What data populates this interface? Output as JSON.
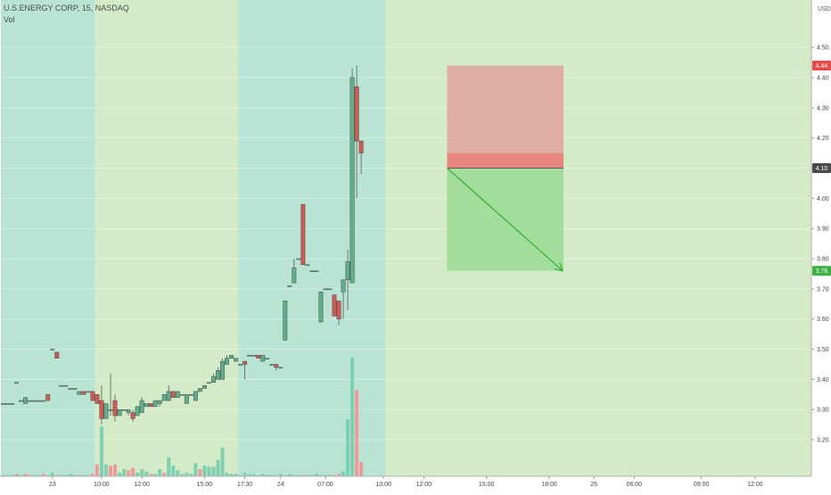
{
  "header": {
    "symbol_line": "U.S.ENERGY CORP, 15, NASDAQ",
    "volume_label": "Vol"
  },
  "colors": {
    "up": "#5fae8e",
    "down": "#d05a56",
    "vol_up": "#7fcfb3",
    "vol_down": "#ef9a9a",
    "session_pre": "#b9e4d4",
    "session_regular": "#d3ebc7",
    "stop_zone": "#e0a79e",
    "stop_band": "#e7877f",
    "target_zone": "#9fdc9a",
    "arrow": "#3ab23a",
    "entry_line": "#5a5a5a",
    "badge_red": "#e84a4a",
    "badge_dark": "#4a4a4a",
    "badge_green": "#3cb043"
  },
  "chart_data": {
    "type": "candlestick",
    "title": "U.S.ENERGY CORP, 15, NASDAQ",
    "currency_label": "USD",
    "y_ticks": [
      "4.50",
      "4.40",
      "4.30",
      "4.20",
      "4.10",
      "4.00",
      "3.90",
      "3.80",
      "3.70",
      "3.60",
      "3.50",
      "3.40",
      "3.30",
      "3.20"
    ],
    "ylim": [
      3.15,
      4.53
    ],
    "x_ticks": [
      "23",
      "10:00",
      "12:00",
      "15:00",
      "17:30",
      "24",
      "07:00",
      "10:00",
      "12:00",
      "15:00",
      "18:00",
      "25",
      "06:00",
      "09:00",
      "12:00"
    ],
    "price_badges": [
      {
        "label": "4.44",
        "value": 4.44,
        "color": "badge_red"
      },
      {
        "label": "4.10",
        "value": 4.1,
        "color": "badge_dark"
      },
      {
        "label": "3.76",
        "value": 3.76,
        "color": "badge_green"
      }
    ],
    "position_tool": {
      "entry": 4.1,
      "stop": 4.44,
      "target": 3.76,
      "stop_band_top": 4.15,
      "bar_start": 99,
      "bar_end": 125
    },
    "sessions": [
      {
        "kind": "pre",
        "bar_start": 0,
        "bar_end": 21
      },
      {
        "kind": "regular",
        "bar_start": 21,
        "bar_end": 53
      },
      {
        "kind": "pre",
        "bar_start": 53,
        "bar_end": 86
      },
      {
        "kind": "regular",
        "bar_start": 86,
        "bar_end": 200
      }
    ],
    "candles": [
      [
        0,
        3.32,
        3.32,
        3.32,
        3.32
      ],
      [
        1,
        3.32,
        3.32,
        3.32,
        3.32
      ],
      [
        2,
        3.32,
        3.32,
        3.32,
        3.32
      ],
      [
        3,
        3.39,
        3.39,
        3.39,
        3.39
      ],
      [
        4,
        3.33,
        3.33,
        3.33,
        3.33
      ],
      [
        5,
        3.32,
        3.34,
        3.32,
        3.34
      ],
      [
        6,
        3.33,
        3.33,
        3.33,
        3.33
      ],
      [
        7,
        3.33,
        3.33,
        3.33,
        3.33
      ],
      [
        8,
        3.33,
        3.33,
        3.33,
        3.33
      ],
      [
        9,
        3.33,
        3.33,
        3.33,
        3.33
      ],
      [
        10,
        3.35,
        3.33,
        3.33,
        3.35
      ],
      [
        11,
        3.5,
        3.5,
        3.5,
        3.5
      ],
      [
        12,
        3.49,
        3.47,
        3.47,
        3.49
      ],
      [
        13,
        3.38,
        3.38,
        3.38,
        3.38
      ],
      [
        14,
        3.38,
        3.38,
        3.38,
        3.38
      ],
      [
        15,
        3.37,
        3.37,
        3.37,
        3.37
      ],
      [
        16,
        3.37,
        3.37,
        3.37,
        3.37
      ],
      [
        17,
        3.35,
        3.36,
        3.35,
        3.36
      ],
      [
        18,
        3.36,
        3.35,
        3.35,
        3.36
      ],
      [
        19,
        3.36,
        3.36,
        3.36,
        3.36
      ],
      [
        20,
        3.36,
        3.33,
        3.33,
        3.36
      ],
      [
        21,
        3.35,
        3.32,
        3.32,
        3.35
      ],
      [
        22,
        3.33,
        3.27,
        3.25,
        3.38
      ],
      [
        23,
        3.27,
        3.32,
        3.27,
        3.32
      ],
      [
        24,
        3.3,
        3.3,
        3.28,
        3.42
      ],
      [
        25,
        3.33,
        3.28,
        3.26,
        3.35
      ],
      [
        26,
        3.28,
        3.3,
        3.28,
        3.3
      ],
      [
        27,
        3.3,
        3.3,
        3.3,
        3.3
      ],
      [
        28,
        3.29,
        3.3,
        3.28,
        3.3
      ],
      [
        29,
        3.29,
        3.27,
        3.26,
        3.3
      ],
      [
        30,
        3.28,
        3.31,
        3.28,
        3.31
      ],
      [
        31,
        3.29,
        3.33,
        3.29,
        3.34
      ],
      [
        32,
        3.31,
        3.32,
        3.31,
        3.32
      ],
      [
        33,
        3.32,
        3.31,
        3.31,
        3.32
      ],
      [
        34,
        3.31,
        3.33,
        3.31,
        3.33
      ],
      [
        35,
        3.32,
        3.33,
        3.31,
        3.33
      ],
      [
        36,
        3.33,
        3.35,
        3.33,
        3.35
      ],
      [
        37,
        3.33,
        3.36,
        3.33,
        3.38
      ],
      [
        38,
        3.36,
        3.34,
        3.34,
        3.36
      ],
      [
        39,
        3.34,
        3.36,
        3.34,
        3.36
      ],
      [
        40,
        3.35,
        3.35,
        3.35,
        3.35
      ],
      [
        41,
        3.32,
        3.35,
        3.32,
        3.35
      ],
      [
        42,
        3.35,
        3.35,
        3.35,
        3.35
      ],
      [
        43,
        3.33,
        3.36,
        3.33,
        3.36
      ],
      [
        44,
        3.36,
        3.37,
        3.36,
        3.37
      ],
      [
        45,
        3.37,
        3.38,
        3.37,
        3.38
      ],
      [
        46,
        3.39,
        3.39,
        3.39,
        3.39
      ],
      [
        47,
        3.39,
        3.41,
        3.39,
        3.42
      ],
      [
        48,
        3.4,
        3.43,
        3.4,
        3.44
      ],
      [
        49,
        3.4,
        3.46,
        3.4,
        3.47
      ],
      [
        50,
        3.45,
        3.47,
        3.45,
        3.48
      ],
      [
        51,
        3.47,
        3.48,
        3.47,
        3.48
      ],
      [
        52,
        3.46,
        3.47,
        3.46,
        3.47
      ],
      [
        53,
        3.45,
        3.45,
        3.45,
        3.45
      ],
      [
        54,
        3.46,
        3.45,
        3.4,
        3.46
      ],
      [
        55,
        3.48,
        3.48,
        3.48,
        3.48
      ],
      [
        56,
        3.48,
        3.48,
        3.48,
        3.48
      ],
      [
        57,
        3.48,
        3.47,
        3.47,
        3.48
      ],
      [
        58,
        3.46,
        3.48,
        3.46,
        3.48
      ],
      [
        59,
        3.47,
        3.47,
        3.47,
        3.47
      ],
      [
        60,
        3.45,
        3.45,
        3.45,
        3.45
      ],
      [
        61,
        3.45,
        3.44,
        3.43,
        3.45
      ],
      [
        62,
        3.44,
        3.44,
        3.44,
        3.44
      ],
      [
        63,
        3.53,
        3.66,
        3.53,
        3.66
      ],
      [
        64,
        3.71,
        3.71,
        3.71,
        3.71
      ],
      [
        65,
        3.72,
        3.77,
        3.72,
        3.8
      ],
      [
        66,
        3.8,
        3.8,
        3.8,
        3.8
      ],
      [
        67,
        3.98,
        3.78,
        3.78,
        3.98
      ],
      [
        68,
        3.78,
        3.78,
        3.78,
        3.78
      ],
      [
        69,
        3.76,
        3.76,
        3.76,
        3.76
      ],
      [
        70,
        3.76,
        3.76,
        3.76,
        3.76
      ],
      [
        71,
        3.59,
        3.69,
        3.59,
        3.69
      ],
      [
        72,
        3.7,
        3.7,
        3.7,
        3.7
      ],
      [
        73,
        3.7,
        3.7,
        3.7,
        3.7
      ],
      [
        74,
        3.68,
        3.61,
        3.61,
        3.68
      ],
      [
        75,
        3.66,
        3.6,
        3.58,
        3.66
      ],
      [
        76,
        3.69,
        3.73,
        3.6,
        3.73
      ],
      [
        77,
        3.73,
        3.79,
        3.63,
        3.83
      ],
      [
        78,
        3.72,
        4.4,
        3.72,
        4.43
      ],
      [
        79,
        4.37,
        4.19,
        4.0,
        4.44
      ],
      [
        80,
        4.19,
        4.15,
        4.08,
        4.19
      ]
    ],
    "volumes": [
      [
        0,
        0.01,
        "up"
      ],
      [
        1,
        0.01,
        "up"
      ],
      [
        2,
        0.01,
        "up"
      ],
      [
        3,
        0.02,
        "down"
      ],
      [
        4,
        0.01,
        "up"
      ],
      [
        5,
        0.02,
        "down"
      ],
      [
        6,
        0.01,
        "down"
      ],
      [
        7,
        0.01,
        "up"
      ],
      [
        8,
        0.01,
        "up"
      ],
      [
        9,
        0.02,
        "down"
      ],
      [
        10,
        0.01,
        "up"
      ],
      [
        11,
        0.03,
        "up"
      ],
      [
        12,
        0.01,
        "down"
      ],
      [
        13,
        0.01,
        "up"
      ],
      [
        14,
        0.01,
        "up"
      ],
      [
        15,
        0.02,
        "up"
      ],
      [
        16,
        0.01,
        "up"
      ],
      [
        17,
        0.01,
        "down"
      ],
      [
        18,
        0.01,
        "up"
      ],
      [
        19,
        0.01,
        "up"
      ],
      [
        20,
        0.02,
        "down"
      ],
      [
        21,
        0.1,
        "down"
      ],
      [
        22,
        0.42,
        "up"
      ],
      [
        23,
        0.1,
        "up"
      ],
      [
        24,
        0.09,
        "down"
      ],
      [
        25,
        0.1,
        "down"
      ],
      [
        26,
        0.03,
        "up"
      ],
      [
        27,
        0.06,
        "up"
      ],
      [
        28,
        0.05,
        "down"
      ],
      [
        29,
        0.07,
        "down"
      ],
      [
        30,
        0.03,
        "up"
      ],
      [
        31,
        0.06,
        "up"
      ],
      [
        32,
        0.04,
        "up"
      ],
      [
        33,
        0.02,
        "down"
      ],
      [
        34,
        0.02,
        "up"
      ],
      [
        35,
        0.06,
        "up"
      ],
      [
        36,
        0.03,
        "down"
      ],
      [
        37,
        0.16,
        "up"
      ],
      [
        38,
        0.09,
        "up"
      ],
      [
        39,
        0.05,
        "up"
      ],
      [
        40,
        0.02,
        "up"
      ],
      [
        41,
        0.03,
        "up"
      ],
      [
        42,
        0.02,
        "up"
      ],
      [
        43,
        0.11,
        "up"
      ],
      [
        44,
        0.06,
        "down"
      ],
      [
        45,
        0.09,
        "up"
      ],
      [
        46,
        0.08,
        "up"
      ],
      [
        47,
        0.08,
        "up"
      ],
      [
        48,
        0.14,
        "up"
      ],
      [
        49,
        0.24,
        "up"
      ],
      [
        50,
        0.03,
        "up"
      ],
      [
        51,
        0.02,
        "up"
      ],
      [
        52,
        0.02,
        "up"
      ],
      [
        53,
        0.01,
        "up"
      ],
      [
        54,
        0.03,
        "up"
      ],
      [
        55,
        0.02,
        "up"
      ],
      [
        56,
        0.02,
        "up"
      ],
      [
        57,
        0.01,
        "up"
      ],
      [
        58,
        0.02,
        "up"
      ],
      [
        59,
        0.01,
        "up"
      ],
      [
        60,
        0.01,
        "up"
      ],
      [
        61,
        0.01,
        "up"
      ],
      [
        62,
        0.02,
        "up"
      ],
      [
        63,
        0.01,
        "up"
      ],
      [
        64,
        0.02,
        "up"
      ],
      [
        65,
        0.01,
        "up"
      ],
      [
        66,
        0.01,
        "up"
      ],
      [
        67,
        0.01,
        "down"
      ],
      [
        68,
        0.01,
        "up"
      ],
      [
        69,
        0.01,
        "up"
      ],
      [
        70,
        0.02,
        "up"
      ],
      [
        71,
        0.01,
        "up"
      ],
      [
        72,
        0.01,
        "up"
      ],
      [
        73,
        0.01,
        "up"
      ],
      [
        74,
        0.01,
        "down"
      ],
      [
        75,
        0.02,
        "down"
      ],
      [
        76,
        0.04,
        "up"
      ],
      [
        77,
        0.48,
        "up"
      ],
      [
        78,
        1.0,
        "up"
      ],
      [
        79,
        0.73,
        "down"
      ],
      [
        80,
        0.12,
        "down"
      ]
    ],
    "grid": true
  }
}
